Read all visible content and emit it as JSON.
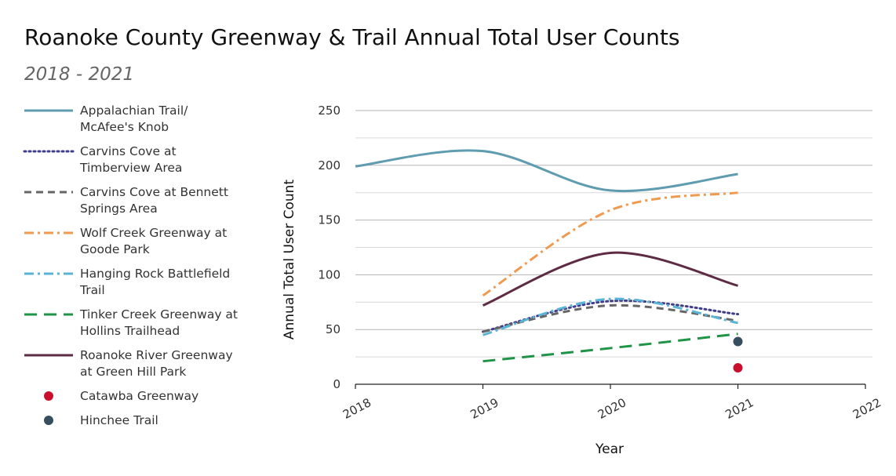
{
  "chart_data": {
    "type": "line",
    "title": "Roanoke County Greenway & Trail Annual Total User Counts",
    "subtitle": "2018 - 2021",
    "xlabel": "Year",
    "ylabel": "Annual Total User Count",
    "xlim": [
      2018,
      2022
    ],
    "ylim": [
      0,
      250
    ],
    "xticks": [
      2018,
      2019,
      2020,
      2021,
      2022
    ],
    "yticks": [
      0,
      50,
      100,
      150,
      200,
      250
    ],
    "grid": true,
    "legend_position": "left",
    "series": [
      {
        "name": "Appalachian Trail/\nMcAfee's Knob",
        "type": "line",
        "color": "#5f9cb0",
        "dash": "solid",
        "x": [
          2018,
          2019,
          2020,
          2021
        ],
        "y": [
          199,
          213,
          177,
          192
        ]
      },
      {
        "name": "Carvins Cove at\nTimberview Area",
        "type": "line",
        "color": "#3f3c8c",
        "dash": "dot",
        "x": [
          2019,
          2020,
          2021
        ],
        "y": [
          48,
          76,
          64
        ]
      },
      {
        "name": "Carvins Cove at Bennett\nSprings Area",
        "type": "line",
        "color": "#666666",
        "dash": "dash",
        "x": [
          2019,
          2020,
          2021
        ],
        "y": [
          48,
          72,
          58
        ]
      },
      {
        "name": "Wolf Creek Greenway at\nGoode Park",
        "type": "line",
        "color": "#ef9a4f",
        "dash": "dashdot",
        "x": [
          2019,
          2020,
          2021
        ],
        "y": [
          81,
          159,
          175
        ]
      },
      {
        "name": "Hanging Rock Battlefield\nTrail",
        "type": "line",
        "color": "#5ab4d6",
        "dash": "dashdot",
        "x": [
          2019,
          2020,
          2021
        ],
        "y": [
          45,
          78,
          56
        ]
      },
      {
        "name": "Tinker Creek Greenway at\nHollins Trailhead",
        "type": "line",
        "color": "#1f9446",
        "dash": "longdash",
        "x": [
          2019,
          2020,
          2021
        ],
        "y": [
          21,
          33,
          46
        ]
      },
      {
        "name": "Roanoke River Greenway\nat Green Hill Park",
        "type": "line",
        "color": "#5e2b44",
        "dash": "solid",
        "x": [
          2019,
          2020,
          2021
        ],
        "y": [
          72,
          120,
          90
        ]
      },
      {
        "name": "Catawba Greenway",
        "type": "point",
        "color": "#c8102e",
        "x": [
          2021
        ],
        "y": [
          15
        ]
      },
      {
        "name": "Hinchee Trail",
        "type": "point",
        "color": "#364e5e",
        "x": [
          2021
        ],
        "y": [
          39
        ]
      }
    ]
  }
}
